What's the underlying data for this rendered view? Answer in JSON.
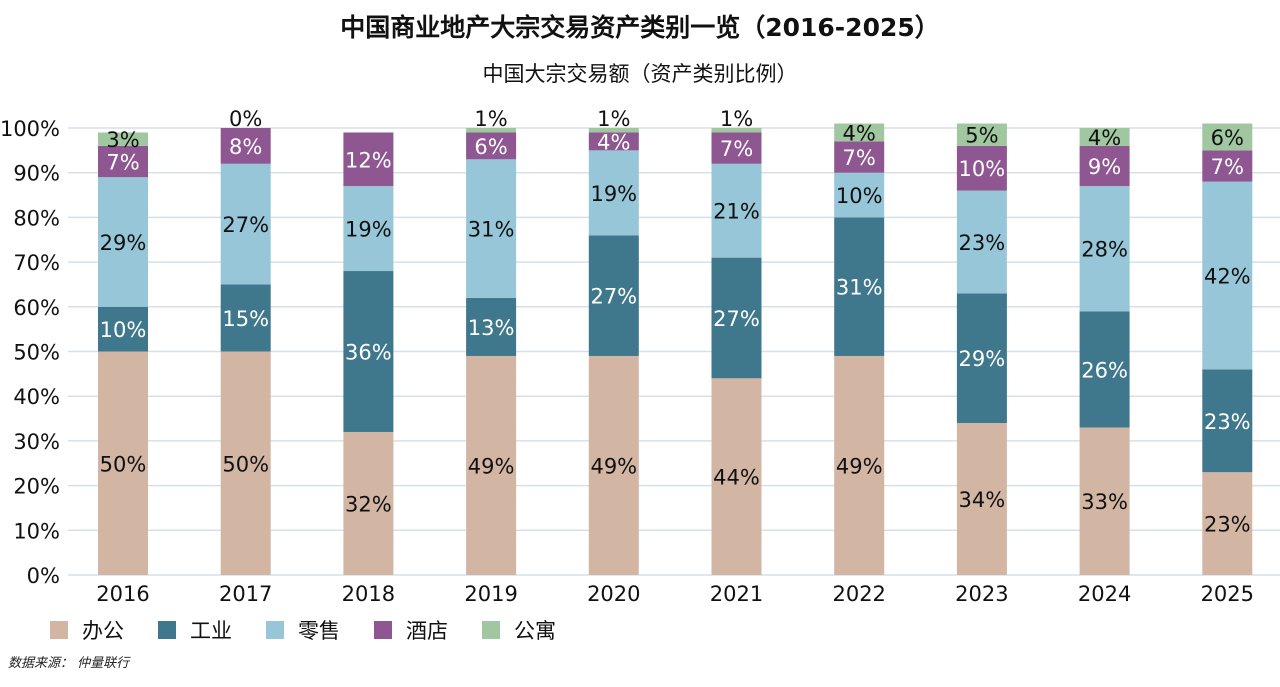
{
  "chart_data": {
    "type": "bar",
    "stacked": true,
    "title": "中国商业地产大宗交易资产类别一览（2016-2025）",
    "subtitle": "中国大宗交易额（资产类别比例）",
    "categories": [
      "2016",
      "2017",
      "2018",
      "2019",
      "2020",
      "2021",
      "2022",
      "2023",
      "2024",
      "2025"
    ],
    "ylim": [
      0,
      100
    ],
    "yticks": [
      "0%",
      "10%",
      "20%",
      "30%",
      "40%",
      "50%",
      "60%",
      "70%",
      "80%",
      "90%",
      "100%"
    ],
    "grid": true,
    "legend_position": "bottom-left",
    "series": [
      {
        "name": "办公",
        "color": "#d2b6a3",
        "label_color": "#111111",
        "values": [
          50,
          50,
          32,
          49,
          49,
          44,
          49,
          34,
          33,
          23
        ]
      },
      {
        "name": "工业",
        "color": "#3f788c",
        "label_color": "#ffffff",
        "values": [
          10,
          15,
          36,
          13,
          27,
          27,
          31,
          29,
          26,
          23
        ]
      },
      {
        "name": "零售",
        "color": "#96c6d7",
        "label_color": "#111111",
        "values": [
          29,
          27,
          19,
          31,
          19,
          21,
          10,
          23,
          28,
          42
        ]
      },
      {
        "name": "酒店",
        "color": "#8f5791",
        "label_color": "#ffffff",
        "values": [
          7,
          8,
          12,
          6,
          4,
          7,
          7,
          10,
          9,
          7
        ]
      },
      {
        "name": "公寓",
        "color": "#a0c7a0",
        "label_color": "#111111",
        "values": [
          3,
          0,
          null,
          1,
          1,
          1,
          4,
          5,
          4,
          6
        ]
      }
    ]
  },
  "source": "数据来源：  仲量联行"
}
